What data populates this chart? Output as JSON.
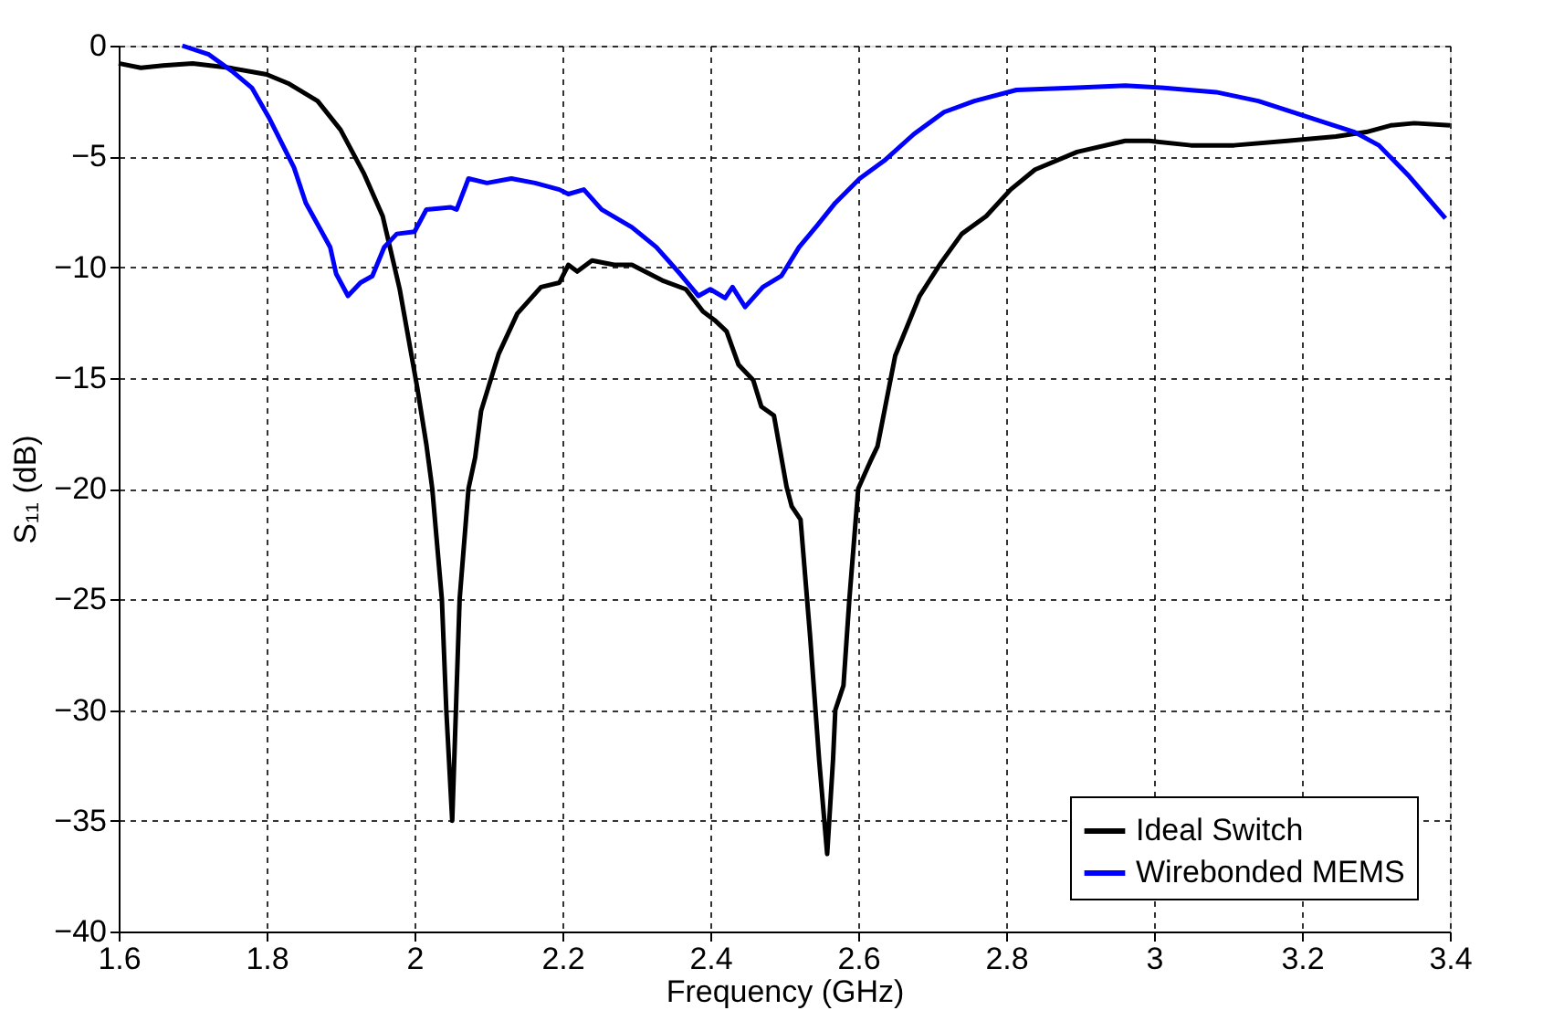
{
  "chart_data": {
    "type": "line",
    "xlabel": "Frequency (GHz)",
    "ylabel": "S₁₁ (dB)",
    "xlim": [
      1.6,
      3.4
    ],
    "xticks": [
      1.6,
      1.8,
      2,
      2.2,
      2.4,
      2.6,
      2.8,
      3,
      3.2,
      3.4
    ],
    "ylim": [
      -40,
      0
    ],
    "yticks": [
      -40,
      -35,
      -30,
      -25,
      -20,
      -15,
      -10,
      -5,
      0
    ],
    "grid": true,
    "legend": "bottom right",
    "line_style": "solid",
    "marker": "none",
    "series": [
      {
        "name": "Ideal Switch",
        "color": "#000000",
        "x": [
          1.6,
          1.63,
          1.66,
          1.7,
          1.75,
          1.8,
          1.829,
          1.869,
          1.9,
          1.932,
          1.957,
          1.98,
          2.004,
          2.016,
          2.024,
          2.037,
          2.043,
          2.051,
          2.061,
          2.073,
          2.082,
          2.09,
          2.114,
          2.139,
          2.171,
          2.196,
          2.208,
          2.22,
          2.24,
          2.27,
          2.294,
          2.335,
          2.367,
          2.39,
          2.406,
          2.422,
          2.438,
          2.458,
          2.469,
          2.486,
          2.503,
          2.51,
          2.522,
          2.535,
          2.547,
          2.558,
          2.566,
          2.569,
          2.58,
          2.588,
          2.6,
          2.616,
          2.626,
          2.65,
          2.683,
          2.712,
          2.74,
          2.773,
          2.806,
          2.839,
          2.896,
          2.961,
          2.994,
          3.05,
          3.108,
          3.18,
          3.246,
          3.287,
          3.32,
          3.352,
          3.4
        ],
        "values": [
          -0.8,
          -1.0,
          -0.9,
          -0.8,
          -1.0,
          -1.3,
          -1.7,
          -2.5,
          -3.8,
          -5.8,
          -7.7,
          -11,
          -15.5,
          -18,
          -20,
          -25,
          -30,
          -35,
          -25,
          -20,
          -18.6,
          -16.5,
          -13.9,
          -12.1,
          -10.9,
          -10.7,
          -9.9,
          -10.2,
          -9.7,
          -9.9,
          -9.9,
          -10.6,
          -11,
          -12,
          -12.4,
          -12.9,
          -14.4,
          -15.1,
          -16.3,
          -16.7,
          -19.9,
          -20.8,
          -21.4,
          -26.7,
          -32.2,
          -36.5,
          -32.2,
          -30,
          -28.9,
          -25,
          -20,
          -18.8,
          -18.1,
          -14,
          -11.3,
          -9.8,
          -8.5,
          -7.7,
          -6.5,
          -5.6,
          -4.8,
          -4.3,
          -4.3,
          -4.5,
          -4.5,
          -4.3,
          -4.1,
          -3.9,
          -3.6,
          -3.5,
          -3.6
        ]
      },
      {
        "name": "Wirebonded MEMS",
        "color": "#0000ff",
        "x": [
          1.686,
          1.722,
          1.755,
          1.78,
          1.804,
          1.837,
          1.853,
          1.886,
          1.894,
          1.91,
          1.927,
          1.943,
          1.959,
          1.976,
          2.0,
          2.016,
          2.049,
          2.057,
          2.073,
          2.098,
          2.131,
          2.163,
          2.196,
          2.208,
          2.229,
          2.253,
          2.294,
          2.327,
          2.359,
          2.384,
          2.4,
          2.42,
          2.43,
          2.447,
          2.471,
          2.496,
          2.52,
          2.545,
          2.569,
          2.602,
          2.635,
          2.675,
          2.716,
          2.757,
          2.814,
          2.896,
          2.961,
          3.01,
          3.084,
          3.141,
          3.206,
          3.271,
          3.304,
          3.345,
          3.394
        ],
        "values": [
          0,
          -0.4,
          -1.2,
          -1.9,
          -3.3,
          -5.5,
          -7.1,
          -9.1,
          -10.3,
          -11.3,
          -10.7,
          -10.4,
          -9.1,
          -8.5,
          -8.4,
          -7.4,
          -7.3,
          -7.4,
          -6.0,
          -6.2,
          -6,
          -6.2,
          -6.5,
          -6.7,
          -6.5,
          -7.4,
          -8.2,
          -9.1,
          -10.3,
          -11.3,
          -11,
          -11.4,
          -10.9,
          -11.8,
          -10.9,
          -10.4,
          -9.1,
          -8.1,
          -7.1,
          -6.0,
          -5.2,
          -4,
          -3,
          -2.5,
          -2,
          -1.9,
          -1.8,
          -1.9,
          -2.1,
          -2.5,
          -3.2,
          -3.9,
          -4.5,
          -5.9,
          -7.8
        ]
      }
    ]
  }
}
